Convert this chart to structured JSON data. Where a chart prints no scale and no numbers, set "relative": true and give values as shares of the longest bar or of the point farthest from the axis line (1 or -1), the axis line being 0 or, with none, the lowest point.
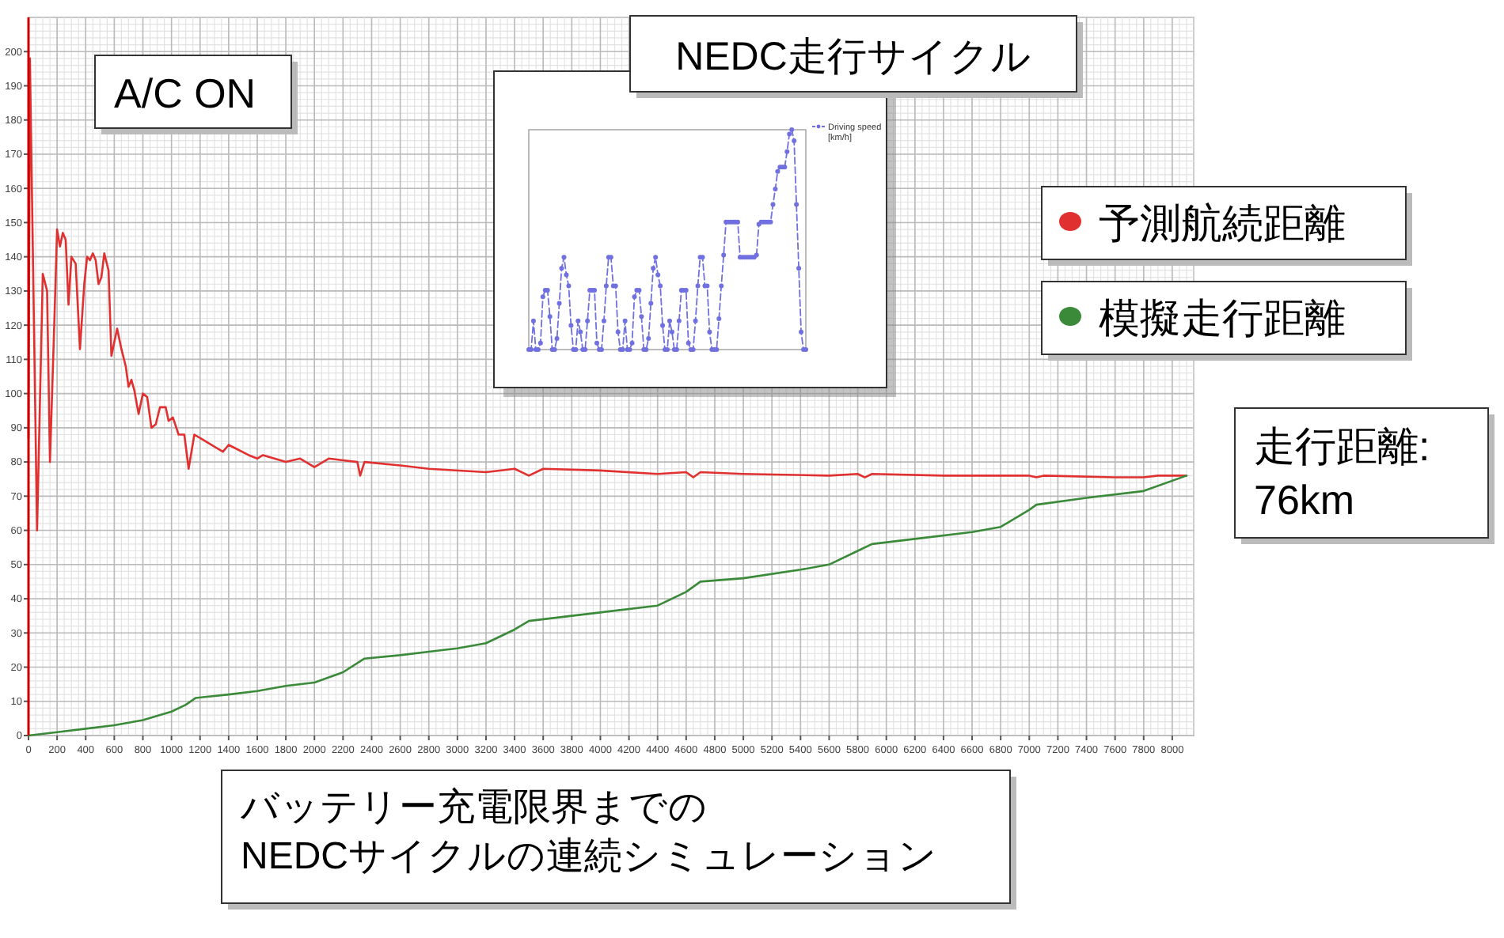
{
  "chart_data": [
    {
      "type": "line",
      "xlim": [
        0,
        8150
      ],
      "ylim": [
        0,
        210
      ],
      "xticks": [
        0,
        200,
        400,
        600,
        800,
        1000,
        1200,
        1400,
        1600,
        1800,
        2000,
        2200,
        2400,
        2600,
        2800,
        3000,
        3200,
        3400,
        3600,
        3800,
        4000,
        4200,
        4400,
        4600,
        4800,
        5000,
        5200,
        5400,
        5600,
        5800,
        6000,
        6200,
        6400,
        6600,
        6800,
        7000,
        7200,
        7400,
        7600,
        7800,
        8000
      ],
      "yticks": [
        0,
        10,
        20,
        30,
        40,
        50,
        60,
        70,
        80,
        90,
        100,
        110,
        120,
        130,
        140,
        150,
        160,
        170,
        180,
        190,
        200
      ],
      "grid": true,
      "legend": "right",
      "annotations": [
        "A/C ON",
        "走行距離:\n76km",
        "バッテリー充電限界までの\nNEDCサイクルの連続シミュレーション"
      ],
      "series": [
        {
          "name": "予測航続距離",
          "color": "#e03030",
          "x": [
            0,
            10,
            60,
            100,
            130,
            150,
            180,
            200,
            220,
            240,
            260,
            280,
            300,
            330,
            360,
            390,
            410,
            430,
            450,
            470,
            490,
            510,
            530,
            560,
            580,
            620,
            650,
            680,
            700,
            720,
            740,
            770,
            800,
            830,
            860,
            890,
            920,
            960,
            980,
            1010,
            1050,
            1090,
            1120,
            1160,
            1240,
            1320,
            1360,
            1400,
            1540,
            1600,
            1640,
            1800,
            1900,
            2000,
            2100,
            2200,
            2300,
            2320,
            2350,
            2600,
            2800,
            3200,
            3400,
            3500,
            3600,
            4000,
            4400,
            4600,
            4650,
            4700,
            5000,
            5600,
            5800,
            5850,
            5900,
            6400,
            7000,
            7050,
            7100,
            7600,
            7800,
            7900,
            8100
          ],
          "values": [
            87,
            198,
            60,
            135,
            130,
            80,
            120,
            148,
            143,
            147,
            145,
            126,
            140,
            138,
            113,
            132,
            140,
            139,
            141,
            139,
            132,
            134,
            141,
            136,
            111,
            119,
            113,
            108,
            102,
            104,
            101,
            94,
            100,
            99,
            90,
            91,
            96,
            96,
            92,
            93,
            88,
            88,
            78,
            88,
            86,
            84,
            83,
            85,
            82,
            81,
            82,
            80,
            81,
            78.5,
            81,
            80.5,
            80,
            76,
            80,
            79,
            78,
            77,
            78,
            76,
            78,
            77.5,
            76.5,
            77,
            75.5,
            77,
            76.5,
            76,
            76.5,
            75.5,
            76.5,
            76,
            76,
            75.5,
            76,
            75.5,
            75.5,
            76,
            76
          ]
        },
        {
          "name": "模擬走行距離",
          "color": "#3a8a3a",
          "x": [
            0,
            200,
            400,
            600,
            800,
            1000,
            1100,
            1170,
            1400,
            1600,
            1800,
            2000,
            2200,
            2350,
            2600,
            2800,
            3000,
            3200,
            3400,
            3500,
            3800,
            4000,
            4400,
            4600,
            4700,
            5000,
            5400,
            5600,
            5800,
            5900,
            6200,
            6600,
            6800,
            7000,
            7050,
            7400,
            7800,
            8100
          ],
          "values": [
            0,
            1,
            2,
            3,
            4.5,
            7,
            9,
            11,
            12,
            13,
            14.5,
            15.5,
            18.5,
            22.5,
            23.5,
            24.5,
            25.5,
            27,
            31,
            33.5,
            35,
            36,
            38,
            42,
            45,
            46,
            48.5,
            50,
            54,
            56,
            57.5,
            59.5,
            61,
            66,
            67.5,
            69.5,
            71.5,
            76
          ]
        }
      ]
    },
    {
      "type": "line",
      "title": "NEDC走行サイクル",
      "relative": true,
      "legend": "top right",
      "marker": "circle",
      "line_style": "dashed",
      "categories": [
        null,
        null,
        null,
        null,
        null,
        null,
        null,
        null,
        null,
        null,
        null,
        null,
        null,
        null,
        null,
        null,
        null,
        null,
        null,
        null,
        null,
        null,
        null,
        null,
        null,
        null,
        null,
        null,
        null,
        null,
        null,
        null,
        null,
        null,
        null,
        null,
        null,
        null,
        null,
        null,
        null,
        null,
        null,
        null,
        null,
        null,
        null,
        null,
        null,
        null,
        null,
        null,
        null,
        null,
        null,
        null,
        null,
        null,
        null,
        null,
        null,
        null,
        null,
        null,
        null,
        null,
        null,
        null,
        null,
        null,
        null,
        null,
        null,
        null,
        null,
        null,
        null,
        null,
        null,
        null,
        null,
        null,
        null,
        null,
        null,
        null,
        null,
        null,
        null,
        null,
        null,
        null,
        null,
        null,
        null,
        null,
        null,
        null,
        null,
        null,
        null,
        null,
        null,
        null,
        null,
        null,
        null,
        null,
        null,
        null,
        null,
        null,
        null,
        null,
        null,
        null,
        null,
        null,
        null
      ],
      "series": [
        {
          "name": "Driving speed [km/h]",
          "color": "#7070e0",
          "values": [
            0,
            0,
            0.13,
            0,
            0,
            0.03,
            0.24,
            0.27,
            0.27,
            0.15,
            0,
            0,
            0.05,
            0.21,
            0.37,
            0.42,
            0.34,
            0.29,
            0.11,
            0,
            0,
            0.13,
            0.08,
            0,
            0,
            0.13,
            0.27,
            0.27,
            0.27,
            0.03,
            0,
            0,
            0.13,
            0.29,
            0.42,
            0.42,
            0.29,
            0.29,
            0.08,
            0,
            0,
            0.13,
            0,
            0,
            0.03,
            0.24,
            0.27,
            0.27,
            0.15,
            0,
            0,
            0.05,
            0.21,
            0.37,
            0.42,
            0.34,
            0.29,
            0.11,
            0,
            0,
            0.13,
            0.08,
            0,
            0,
            0.13,
            0.27,
            0.27,
            0.27,
            0.03,
            0,
            0,
            0.13,
            0.29,
            0.42,
            0.42,
            0.29,
            0.29,
            0.08,
            0,
            0,
            0,
            0.14,
            0.29,
            0.43,
            0.58,
            0.58,
            0.58,
            0.58,
            0.58,
            0.58,
            0.42,
            0.42,
            0.42,
            0.42,
            0.42,
            0.42,
            0.42,
            0.43,
            0.57,
            0.58,
            0.58,
            0.58,
            0.58,
            0.58,
            0.66,
            0.73,
            0.81,
            0.83,
            0.83,
            0.83,
            0.9,
            0.98,
            1,
            0.95,
            0.66,
            0.37,
            0.08,
            0,
            0
          ]
        }
      ]
    }
  ]
}
